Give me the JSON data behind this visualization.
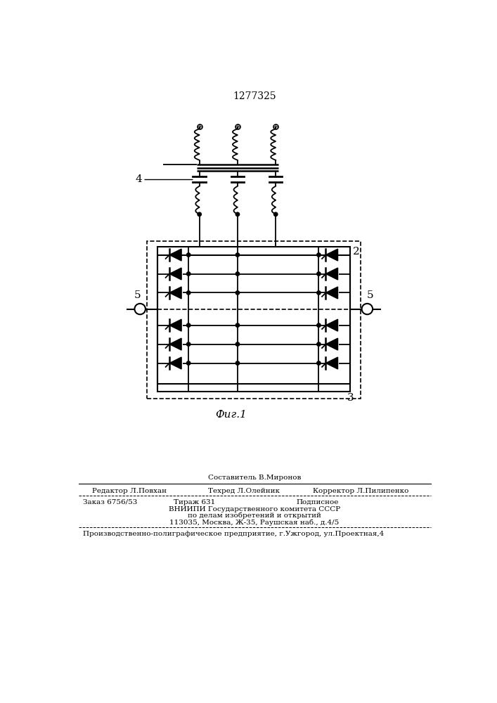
{
  "top_text": "1277325",
  "fig_label": "Фиг.1",
  "label_2": "2",
  "label_3": "3",
  "label_4": "4",
  "label_5a": "5",
  "label_5b": "5",
  "footer_sestavitel": "Составитель В.Миронов",
  "footer_line1_left": "Редактор Л.Повхан",
  "footer_line1_mid": "Техред Л.Олейник",
  "footer_line1_right": "Корректор Л.Пилипенко",
  "footer_line2_col1": "Заказ 6756/53",
  "footer_line2_col2": "Тираж 631",
  "footer_line2_col3": "Подписное",
  "footer_line3": "ВНИИПИ Государственного комитета СССР",
  "footer_line4": "по делам изобретений и открытий",
  "footer_line5": "113035, Москва, Ж-35, Раушская наб., д.4/5",
  "footer_last": "Производственно-полиграфическое предприятие, г.Ужгород, ул.Проектная,4",
  "bg_color": "#ffffff",
  "line_color": "#000000",
  "font_color": "#000000"
}
